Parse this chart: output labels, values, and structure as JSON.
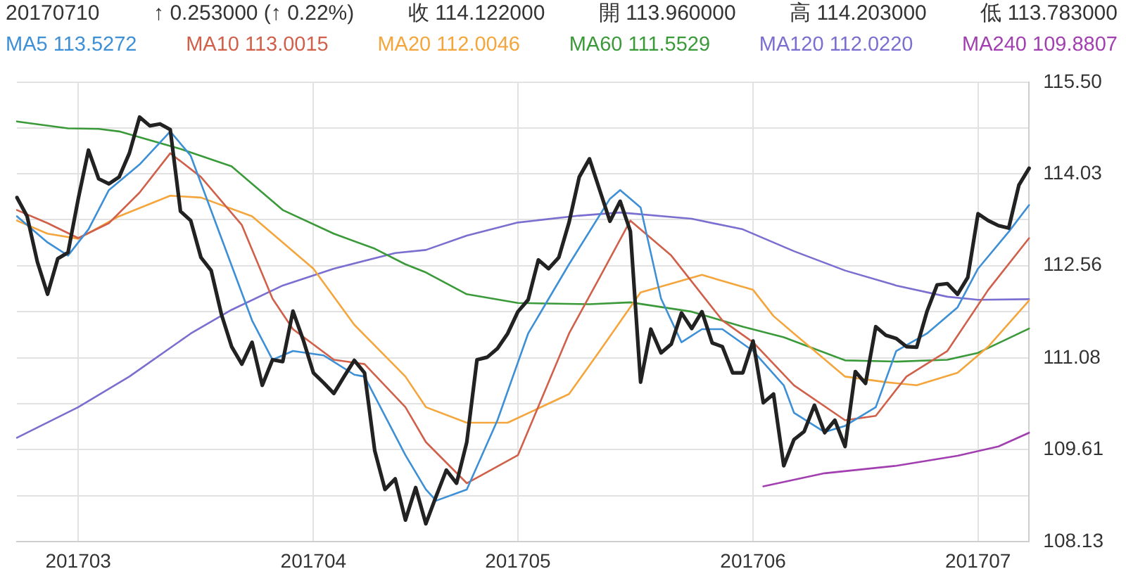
{
  "chart_data": {
    "type": "line",
    "annotations": [
      "20170710",
      "↑ 0.253000 (↑ 0.22%)",
      "收 114.122000",
      "開 113.960000",
      "高 114.203000",
      "低 113.783000"
    ],
    "categories": [
      null,
      null,
      null,
      null,
      null,
      null,
      "201703",
      null,
      null,
      null,
      null,
      null,
      null,
      null,
      null,
      null,
      null,
      null,
      null,
      null,
      null,
      null,
      null,
      null,
      null,
      null,
      null,
      null,
      null,
      "201704",
      null,
      null,
      null,
      null,
      null,
      null,
      null,
      null,
      null,
      null,
      null,
      null,
      null,
      null,
      null,
      null,
      null,
      null,
      null,
      "201705",
      null,
      null,
      null,
      null,
      null,
      null,
      null,
      null,
      null,
      null,
      null,
      null,
      null,
      null,
      null,
      null,
      null,
      null,
      null,
      null,
      null,
      null,
      "201706",
      null,
      null,
      null,
      null,
      null,
      null,
      null,
      null,
      null,
      null,
      null,
      null,
      null,
      null,
      null,
      null,
      null,
      null,
      null,
      null,
      null,
      "201707",
      null,
      null,
      null,
      null,
      null
    ],
    "ylim": [
      108.13,
      115.5
    ],
    "yticks": [
      108.13,
      {
        "value": 108.867,
        "label": null
      },
      109.61,
      {
        "value": 110.345,
        "label": null
      },
      111.08,
      {
        "value": 111.82,
        "label": null
      },
      112.56,
      {
        "value": 113.295,
        "label": null
      },
      114.03,
      {
        "value": 114.765,
        "label": null
      },
      {
        "value": 115.5,
        "label": "115.50"
      }
    ],
    "grid": true,
    "legend": "top",
    "marker": "none",
    "series": [
      {
        "color": "#222222",
        "values": [
          113.65,
          113.35,
          112.62,
          112.1,
          112.67,
          112.77,
          113.63,
          114.41,
          113.95,
          113.87,
          113.98,
          114.36,
          114.94,
          114.8,
          114.83,
          114.74,
          113.43,
          113.28,
          112.69,
          112.48,
          111.78,
          111.26,
          110.98,
          111.33,
          110.64,
          111.05,
          111.02,
          111.83,
          111.37,
          110.84,
          110.68,
          110.51,
          110.78,
          111.04,
          110.84,
          109.59,
          108.97,
          109.14,
          108.48,
          109.0,
          108.42,
          108.86,
          109.28,
          109.07,
          109.73,
          111.05,
          111.09,
          111.23,
          111.47,
          111.82,
          112.01,
          112.65,
          112.51,
          112.69,
          113.25,
          113.98,
          114.27,
          113.77,
          113.27,
          113.59,
          113.11,
          110.69,
          111.54,
          111.16,
          111.3,
          111.8,
          111.55,
          111.82,
          111.32,
          111.26,
          110.84,
          110.84,
          111.35,
          110.36,
          110.5,
          109.35,
          109.77,
          109.9,
          110.32,
          109.88,
          110.08,
          109.66,
          110.86,
          110.67,
          111.58,
          111.44,
          111.39,
          111.26,
          111.25,
          111.82,
          112.25,
          112.27,
          112.1,
          112.37,
          113.39,
          113.28,
          113.2,
          113.16,
          113.85,
          114.12
        ]
      },
      {
        "name": "MA5 113.5272",
        "color": "#3d8fd6",
        "values": [
          113.35,
          null,
          null,
          112.93,
          null,
          112.72,
          null,
          113.14,
          null,
          113.77,
          null,
          null,
          114.18,
          null,
          null,
          114.71,
          null,
          114.32,
          null,
          null,
          113.0,
          null,
          null,
          111.68,
          null,
          111.05,
          null,
          111.19,
          null,
          null,
          111.12,
          null,
          null,
          110.81,
          110.78,
          null,
          null,
          null,
          109.52,
          null,
          108.97,
          108.79,
          null,
          null,
          108.97,
          null,
          null,
          110.08,
          null,
          null,
          111.47,
          null,
          null,
          null,
          112.58,
          null,
          null,
          null,
          113.63,
          113.77,
          null,
          113.49,
          null,
          112.03,
          null,
          111.33,
          null,
          111.54,
          null,
          111.54,
          null,
          null,
          111.19,
          null,
          null,
          110.64,
          110.2,
          null,
          null,
          109.89,
          null,
          109.99,
          null,
          null,
          110.29,
          null,
          111.19,
          null,
          null,
          111.47,
          null,
          null,
          111.89,
          null,
          112.51,
          null,
          null,
          113.1,
          null,
          113.53
        ]
      },
      {
        "name": "MA10 113.0015",
        "color": "#d0604a",
        "values": [
          113.45,
          null,
          null,
          113.24,
          null,
          null,
          113.0,
          null,
          null,
          113.24,
          null,
          null,
          113.73,
          null,
          null,
          114.36,
          null,
          null,
          113.98,
          null,
          null,
          null,
          113.21,
          null,
          null,
          112.03,
          null,
          111.54,
          null,
          null,
          null,
          111.05,
          null,
          null,
          110.98,
          null,
          null,
          null,
          110.29,
          null,
          109.73,
          null,
          null,
          null,
          109.07,
          null,
          null,
          null,
          null,
          109.52,
          null,
          null,
          null,
          null,
          111.47,
          null,
          null,
          112.37,
          null,
          null,
          113.28,
          null,
          null,
          null,
          112.72,
          null,
          null,
          null,
          null,
          111.68,
          null,
          null,
          111.33,
          null,
          null,
          null,
          110.64,
          null,
          null,
          null,
          null,
          110.08,
          null,
          null,
          110.15,
          null,
          null,
          110.78,
          null,
          null,
          null,
          111.19,
          null,
          null,
          null,
          112.17,
          null,
          null,
          null,
          113.0
        ]
      },
      {
        "name": "MA20 112.0046",
        "color": "#f4a63c",
        "values": [
          113.28,
          null,
          null,
          113.07,
          null,
          null,
          112.99,
          null,
          null,
          null,
          113.35,
          null,
          null,
          null,
          null,
          113.68,
          null,
          null,
          113.65,
          null,
          null,
          null,
          null,
          113.35,
          null,
          null,
          null,
          null,
          null,
          112.51,
          null,
          null,
          null,
          111.61,
          null,
          null,
          null,
          null,
          110.78,
          null,
          110.29,
          null,
          null,
          null,
          110.04,
          null,
          null,
          null,
          110.04,
          null,
          null,
          null,
          null,
          null,
          110.5,
          null,
          null,
          111.19,
          null,
          null,
          null,
          112.13,
          null,
          null,
          null,
          null,
          null,
          112.41,
          null,
          null,
          null,
          null,
          112.17,
          null,
          111.75,
          null,
          111.47,
          null,
          null,
          null,
          null,
          110.78,
          null,
          null,
          null,
          110.69,
          null,
          null,
          110.64,
          null,
          null,
          null,
          110.84,
          null,
          null,
          111.26,
          null,
          null,
          null,
          112.0
        ]
      },
      {
        "name": "MA60 111.5529",
        "color": "#3a9a3a",
        "values": [
          114.87,
          null,
          null,
          null,
          null,
          114.76,
          null,
          null,
          114.75,
          null,
          114.71,
          null,
          null,
          null,
          null,
          null,
          114.43,
          null,
          null,
          null,
          null,
          114.15,
          null,
          null,
          null,
          null,
          113.45,
          null,
          null,
          null,
          null,
          113.07,
          null,
          null,
          null,
          112.83,
          null,
          null,
          112.58,
          null,
          112.45,
          null,
          null,
          null,
          112.1,
          null,
          null,
          null,
          null,
          111.96,
          null,
          null,
          null,
          null,
          null,
          null,
          111.94,
          null,
          null,
          null,
          111.97,
          null,
          null,
          null,
          null,
          null,
          111.82,
          null,
          null,
          null,
          null,
          111.58,
          null,
          null,
          null,
          111.41,
          null,
          null,
          null,
          null,
          null,
          111.04,
          null,
          null,
          null,
          null,
          111.02,
          null,
          null,
          null,
          null,
          111.05,
          null,
          null,
          111.16,
          null,
          null,
          null,
          null,
          111.55
        ]
      },
      {
        "name": "MA120 112.0220",
        "color": "#7a6fd0",
        "values": [
          109.8,
          null,
          null,
          null,
          null,
          null,
          110.29,
          null,
          null,
          null,
          null,
          110.78,
          null,
          null,
          null,
          null,
          null,
          111.47,
          null,
          null,
          null,
          111.85,
          null,
          null,
          null,
          null,
          112.24,
          null,
          null,
          null,
          null,
          112.51,
          null,
          null,
          null,
          null,
          null,
          112.76,
          null,
          null,
          112.81,
          null,
          null,
          null,
          113.04,
          null,
          null,
          null,
          null,
          113.25,
          null,
          null,
          null,
          null,
          null,
          113.36,
          null,
          null,
          null,
          113.41,
          null,
          null,
          null,
          null,
          null,
          null,
          113.31,
          null,
          null,
          null,
          null,
          113.14,
          null,
          null,
          null,
          null,
          112.79,
          null,
          null,
          null,
          null,
          112.48,
          null,
          null,
          null,
          null,
          112.24,
          null,
          null,
          null,
          null,
          112.06,
          null,
          null,
          112.01,
          null,
          null,
          null,
          null,
          112.02
        ]
      },
      {
        "name": "MA240 109.8807",
        "color": "#a23fb0",
        "values": [
          null,
          null,
          null,
          null,
          null,
          null,
          null,
          null,
          null,
          null,
          null,
          null,
          null,
          null,
          null,
          null,
          null,
          null,
          null,
          null,
          null,
          null,
          null,
          null,
          null,
          null,
          null,
          null,
          null,
          null,
          null,
          null,
          null,
          null,
          null,
          null,
          null,
          null,
          null,
          null,
          null,
          null,
          null,
          null,
          null,
          null,
          null,
          null,
          null,
          null,
          null,
          null,
          null,
          null,
          null,
          null,
          null,
          null,
          null,
          null,
          null,
          null,
          null,
          null,
          null,
          null,
          null,
          null,
          null,
          null,
          null,
          null,
          null,
          109.02,
          null,
          null,
          null,
          null,
          null,
          109.23,
          null,
          null,
          null,
          null,
          null,
          null,
          109.35,
          null,
          null,
          null,
          null,
          null,
          109.51,
          null,
          null,
          null,
          109.66,
          null,
          null,
          109.88
        ]
      }
    ]
  }
}
